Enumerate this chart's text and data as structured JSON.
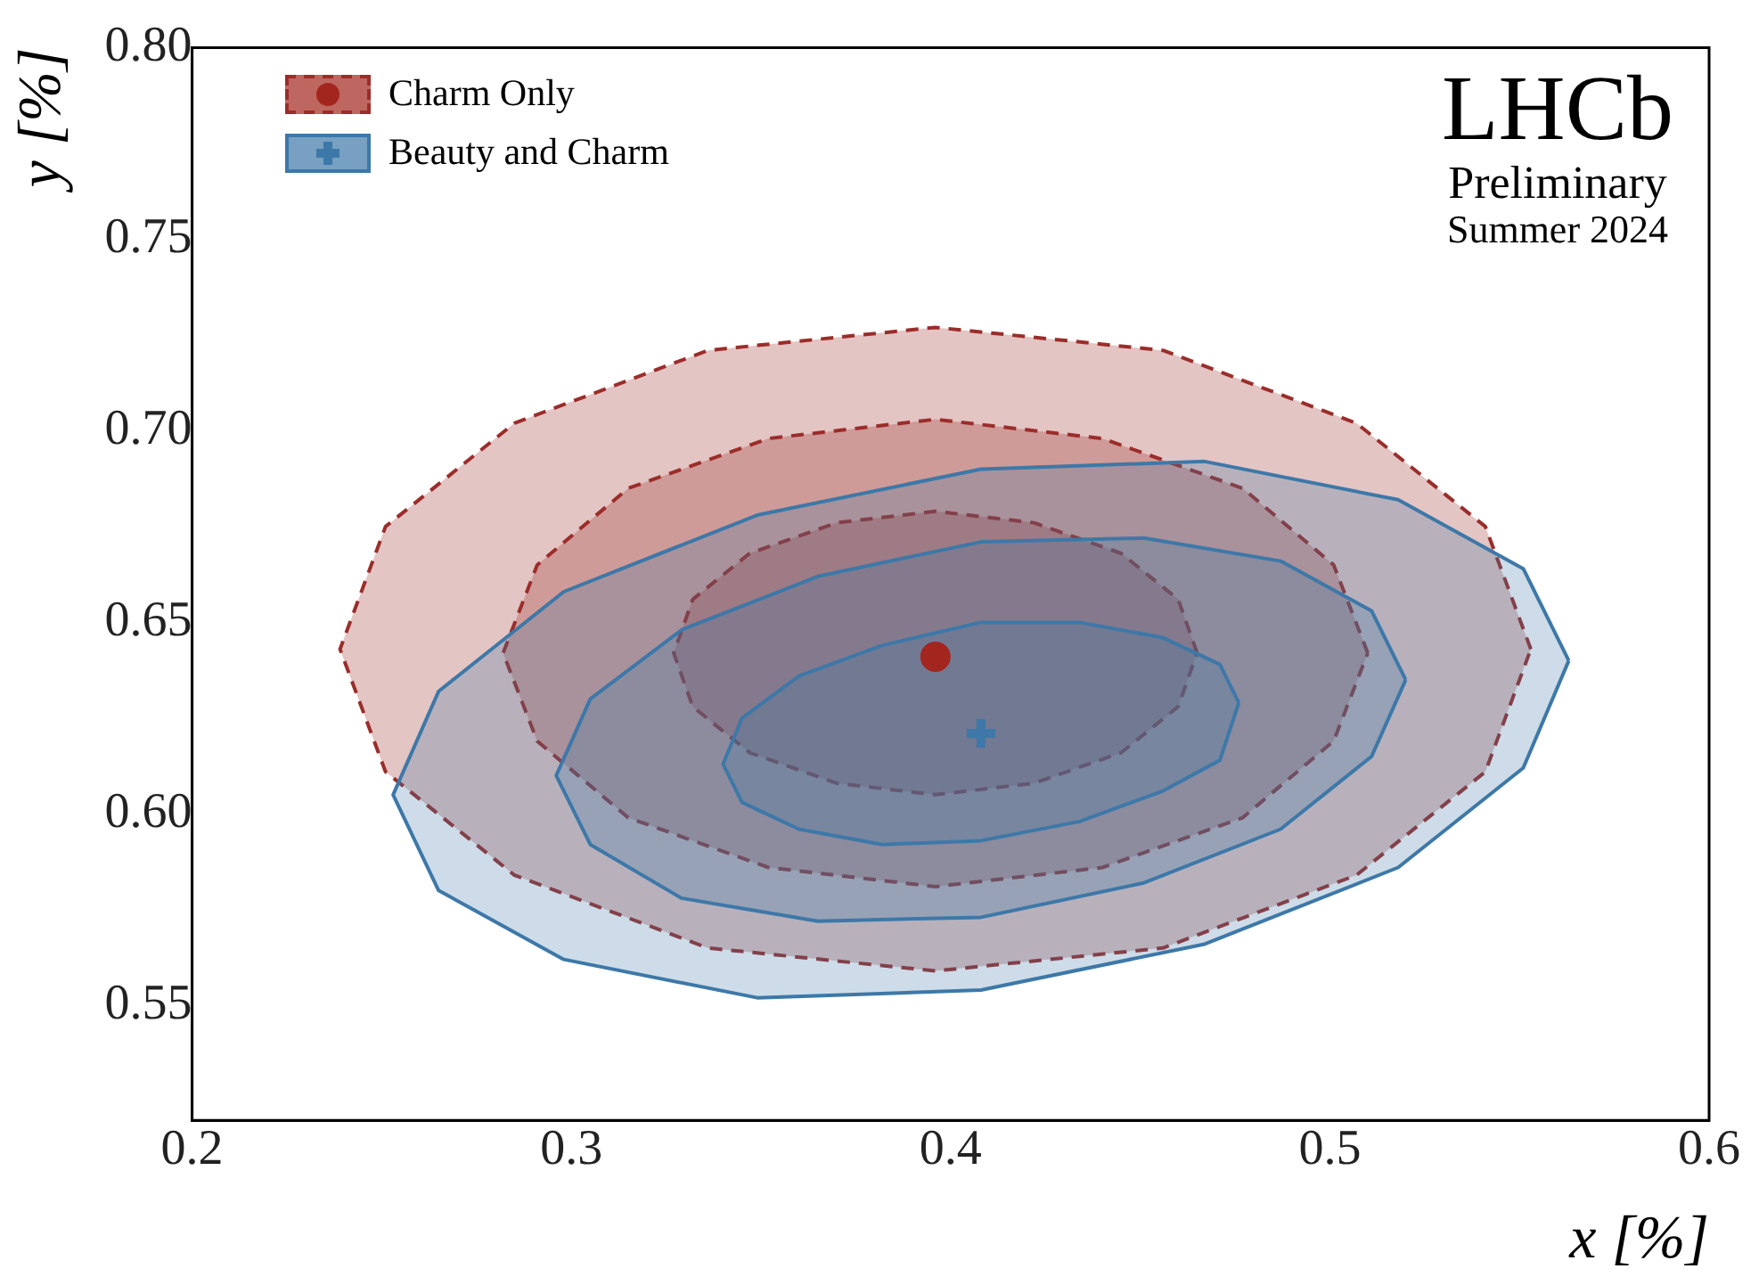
{
  "chart_data": {
    "type": "area",
    "xlabel": "x [%]",
    "ylabel": "y [%]",
    "annotations": [
      "LHCb",
      "Preliminary",
      "Summer 2024"
    ],
    "xlim": [
      0.2,
      0.6
    ],
    "ylim": [
      0.52,
      0.8
    ],
    "xticks": [
      0.2,
      0.3,
      0.4,
      0.5,
      0.6
    ],
    "yticks": [
      0.55,
      {
        "value": 0.6,
        "label": "0.60"
      },
      0.65,
      {
        "value": 0.7,
        "label": "0.70"
      },
      0.75,
      {
        "value": 0.8,
        "label": "0.80"
      }
    ],
    "grid": false,
    "legend": "top left",
    "series": [
      {
        "color": "#9b2d2a",
        "line_style": "dashed",
        "x": [
          0.553,
          0.541,
          0.507,
          0.456,
          0.396,
          0.336,
          0.285,
          0.251,
          0.239,
          0.251,
          0.285,
          0.336,
          0.396,
          0.456,
          0.507,
          0.541,
          0.553
        ],
        "values": [
          0.643,
          0.675,
          0.702,
          0.721,
          0.727,
          0.721,
          0.702,
          0.675,
          0.643,
          0.611,
          0.584,
          0.565,
          0.559,
          0.565,
          0.584,
          0.611,
          0.643
        ]
      },
      {
        "color": "#9b2d2a",
        "line_style": "dashed",
        "x": [
          0.51,
          0.501,
          0.477,
          0.44,
          0.396,
          0.352,
          0.315,
          0.291,
          0.282,
          0.291,
          0.315,
          0.352,
          0.396,
          0.44,
          0.477,
          0.501,
          0.51
        ],
        "values": [
          0.642,
          0.665,
          0.685,
          0.698,
          0.703,
          0.698,
          0.685,
          0.665,
          0.642,
          0.619,
          0.599,
          0.586,
          0.581,
          0.586,
          0.599,
          0.619,
          0.642
        ]
      },
      {
        "color": "#9b2d2a",
        "line_style": "dashed",
        "x": [
          0.465,
          0.46,
          0.445,
          0.422,
          0.396,
          0.37,
          0.347,
          0.332,
          0.327,
          0.332,
          0.347,
          0.37,
          0.396,
          0.422,
          0.445,
          0.46,
          0.465
        ],
        "values": [
          0.642,
          0.656,
          0.668,
          0.676,
          0.679,
          0.676,
          0.668,
          0.656,
          0.642,
          0.628,
          0.616,
          0.608,
          0.605,
          0.608,
          0.616,
          0.628,
          0.642
        ]
      },
      {
        "color": "#3d78a8",
        "line_style": "solid",
        "x": [
          0.563,
          0.551,
          0.518,
          0.467,
          0.408,
          0.349,
          0.298,
          0.265,
          0.253,
          0.265,
          0.298,
          0.349,
          0.408,
          0.467,
          0.518,
          0.551,
          0.563
        ],
        "values": [
          0.64,
          0.664,
          0.682,
          0.692,
          0.69,
          0.678,
          0.658,
          0.632,
          0.605,
          0.58,
          0.562,
          0.552,
          0.554,
          0.566,
          0.586,
          0.612,
          0.64
        ]
      },
      {
        "color": "#3d78a8",
        "line_style": "solid",
        "x": [
          0.52,
          0.511,
          0.487,
          0.451,
          0.408,
          0.365,
          0.329,
          0.305,
          0.296,
          0.305,
          0.329,
          0.365,
          0.408,
          0.451,
          0.487,
          0.511,
          0.52
        ],
        "values": [
          0.635,
          0.653,
          0.666,
          0.672,
          0.671,
          0.662,
          0.648,
          0.63,
          0.61,
          0.592,
          0.578,
          0.572,
          0.573,
          0.582,
          0.596,
          0.615,
          0.635
        ]
      },
      {
        "color": "#3d78a8",
        "line_style": "solid",
        "x": [
          0.476,
          0.471,
          0.456,
          0.434,
          0.408,
          0.382,
          0.36,
          0.345,
          0.34,
          0.345,
          0.36,
          0.382,
          0.408,
          0.434,
          0.456,
          0.471,
          0.476
        ],
        "values": [
          0.629,
          0.639,
          0.646,
          0.65,
          0.65,
          0.644,
          0.636,
          0.625,
          0.613,
          0.603,
          0.596,
          0.592,
          0.593,
          0.598,
          0.606,
          0.614,
          0.629
        ]
      },
      {
        "name": "Charm Only",
        "type": "scatter",
        "color": "#a3261e",
        "marker": "circle",
        "x": [
          0.396
        ],
        "values": [
          0.641
        ]
      },
      {
        "name": "Beauty and Charm",
        "type": "scatter",
        "color": "#3d78a8",
        "marker": "cross",
        "x": [
          0.408
        ],
        "values": [
          0.621
        ]
      }
    ]
  }
}
